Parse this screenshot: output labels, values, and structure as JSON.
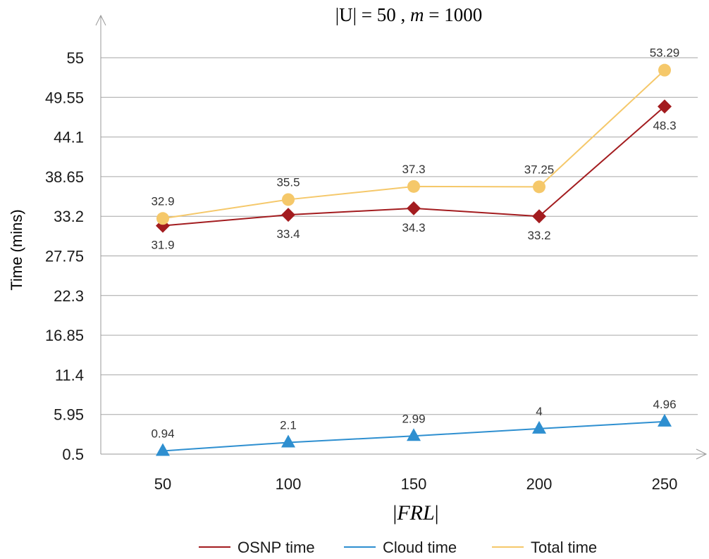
{
  "chart_data": {
    "type": "line",
    "title": "|U| = 50 ,  m = 1000",
    "xlabel": "|FRL|",
    "ylabel": "Time (mins)",
    "categories": [
      "50",
      "100",
      "150",
      "200",
      "250"
    ],
    "yticks": [
      "0.5",
      "5.95",
      "11.4",
      "16.85",
      "22.3",
      "27.75",
      "33.2",
      "38.65",
      "44.1",
      "49.55",
      "55"
    ],
    "ylim": [
      0.5,
      55
    ],
    "grid": true,
    "legend_position": "bottom",
    "series": [
      {
        "name": "OSNP time",
        "values": [
          31.9,
          33.4,
          34.3,
          33.2,
          48.3
        ],
        "labels": [
          "31.9",
          "33.4",
          "34.3",
          "33.2",
          "48.3"
        ],
        "color": "#a31c1f",
        "marker": "diamond",
        "label_position": "below"
      },
      {
        "name": "Cloud time",
        "values": [
          0.94,
          2.1,
          2.99,
          4,
          4.96
        ],
        "labels": [
          "0.94",
          "2.1",
          "2.99",
          "4",
          "4.96"
        ],
        "color": "#2e8fd0",
        "marker": "triangle",
        "label_position": "above"
      },
      {
        "name": "Total time",
        "values": [
          32.9,
          35.5,
          37.3,
          37.25,
          53.29
        ],
        "labels": [
          "32.9",
          "35.5",
          "37.3",
          "37.25",
          "53.29"
        ],
        "color": "#f5c86a",
        "marker": "circle",
        "label_position": "above"
      }
    ]
  }
}
